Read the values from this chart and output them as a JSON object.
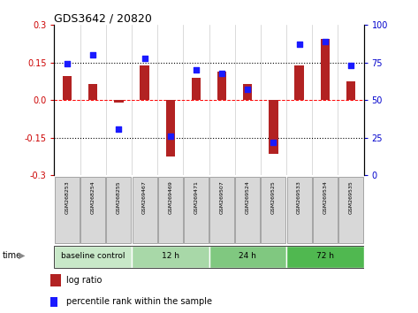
{
  "title": "GDS3642 / 20820",
  "samples": [
    "GSM268253",
    "GSM268254",
    "GSM268255",
    "GSM269467",
    "GSM269469",
    "GSM269471",
    "GSM269507",
    "GSM269524",
    "GSM269525",
    "GSM269533",
    "GSM269534",
    "GSM269535"
  ],
  "log_ratio": [
    0.095,
    0.065,
    -0.008,
    0.14,
    -0.225,
    0.09,
    0.115,
    0.065,
    -0.215,
    0.14,
    0.245,
    0.075
  ],
  "percentile_rank": [
    74,
    80,
    31,
    78,
    26,
    70,
    68,
    57,
    22,
    87,
    89,
    73
  ],
  "bar_color": "#b22222",
  "dot_color": "#1a1aff",
  "ylim_left": [
    -0.3,
    0.3
  ],
  "ylim_right": [
    0,
    100
  ],
  "yticks_left": [
    -0.3,
    -0.15,
    0.0,
    0.15,
    0.3
  ],
  "yticks_right": [
    0,
    25,
    50,
    75,
    100
  ],
  "groups": [
    {
      "label": "baseline control",
      "start": 0,
      "end": 3,
      "color": "#c8e8c8"
    },
    {
      "label": "12 h",
      "start": 3,
      "end": 6,
      "color": "#a8d8a8"
    },
    {
      "label": "24 h",
      "start": 6,
      "end": 9,
      "color": "#80c880"
    },
    {
      "label": "72 h",
      "start": 9,
      "end": 12,
      "color": "#50b850"
    }
  ],
  "time_label": "time",
  "legend_bar_label": "log ratio",
  "legend_dot_label": "percentile rank within the sample",
  "bg_color": "#ffffff",
  "plot_bg": "#ffffff",
  "tick_label_color_left": "#cc0000",
  "tick_label_color_right": "#0000cc",
  "bar_width": 0.35,
  "sample_box_color": "#d8d8d8",
  "sample_box_edge": "#888888"
}
